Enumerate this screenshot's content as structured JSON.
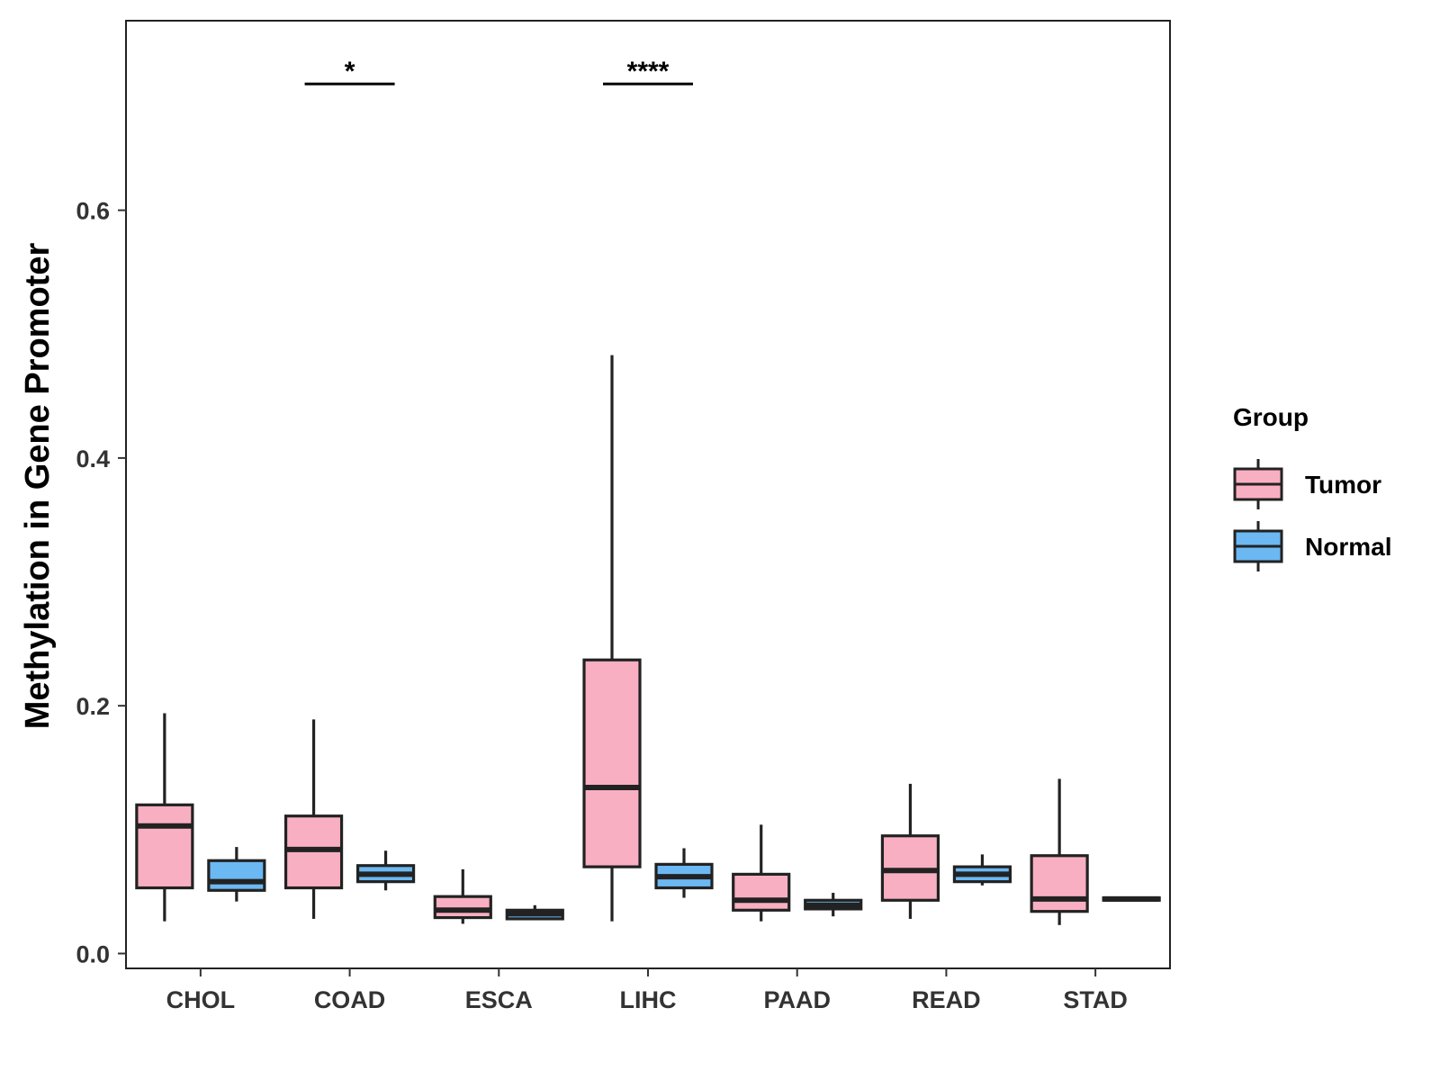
{
  "chart_data": {
    "type": "boxplot",
    "title": "",
    "xlabel": "",
    "ylabel": "Methylation in Gene Promoter",
    "ylim": [
      -0.012,
      0.753
    ],
    "yticks": [
      0.0,
      0.2,
      0.4,
      0.6
    ],
    "ytick_labels": [
      "0.0",
      "0.2",
      "0.4",
      "0.6"
    ],
    "grid": false,
    "legend_position": "right",
    "legend": {
      "title": "Group",
      "items": [
        {
          "name": "Tumor",
          "color": "#F9AFC2"
        },
        {
          "name": "Normal",
          "color": "#6BB8F2"
        }
      ]
    },
    "categories": [
      "CHOL",
      "COAD",
      "ESCA",
      "LIHC",
      "PAAD",
      "READ",
      "STAD"
    ],
    "series": [
      {
        "name": "Tumor",
        "color": "#F9AFC2",
        "boxes": [
          {
            "min": 0.026,
            "q1": 0.053,
            "median": 0.103,
            "q3": 0.12,
            "max": 0.194
          },
          {
            "min": 0.028,
            "q1": 0.053,
            "median": 0.084,
            "q3": 0.111,
            "max": 0.189
          },
          {
            "min": 0.024,
            "q1": 0.029,
            "median": 0.035,
            "q3": 0.046,
            "max": 0.068
          },
          {
            "min": 0.026,
            "q1": 0.07,
            "median": 0.134,
            "q3": 0.237,
            "max": 0.483
          },
          {
            "min": 0.026,
            "q1": 0.035,
            "median": 0.043,
            "q3": 0.064,
            "max": 0.104
          },
          {
            "min": 0.028,
            "q1": 0.043,
            "median": 0.067,
            "q3": 0.095,
            "max": 0.137
          },
          {
            "min": 0.023,
            "q1": 0.034,
            "median": 0.044,
            "q3": 0.079,
            "max": 0.141
          }
        ]
      },
      {
        "name": "Normal",
        "color": "#6BB8F2",
        "boxes": [
          {
            "min": 0.042,
            "q1": 0.051,
            "median": 0.058,
            "q3": 0.075,
            "max": 0.086
          },
          {
            "min": 0.051,
            "q1": 0.058,
            "median": 0.064,
            "q3": 0.071,
            "max": 0.083
          },
          {
            "min": 0.027,
            "q1": 0.028,
            "median": 0.032,
            "q3": 0.035,
            "max": 0.039
          },
          {
            "min": 0.045,
            "q1": 0.053,
            "median": 0.062,
            "q3": 0.072,
            "max": 0.085
          },
          {
            "min": 0.03,
            "q1": 0.036,
            "median": 0.039,
            "q3": 0.043,
            "max": 0.049
          },
          {
            "min": 0.055,
            "q1": 0.058,
            "median": 0.064,
            "q3": 0.07,
            "max": 0.08
          },
          {
            "min": 0.042,
            "q1": 0.043,
            "median": 0.044,
            "q3": 0.045,
            "max": 0.046
          }
        ]
      }
    ],
    "annotations": [
      {
        "category": "COAD",
        "label": "*",
        "y": 0.702
      },
      {
        "category": "LIHC",
        "label": "****",
        "y": 0.702
      }
    ]
  }
}
